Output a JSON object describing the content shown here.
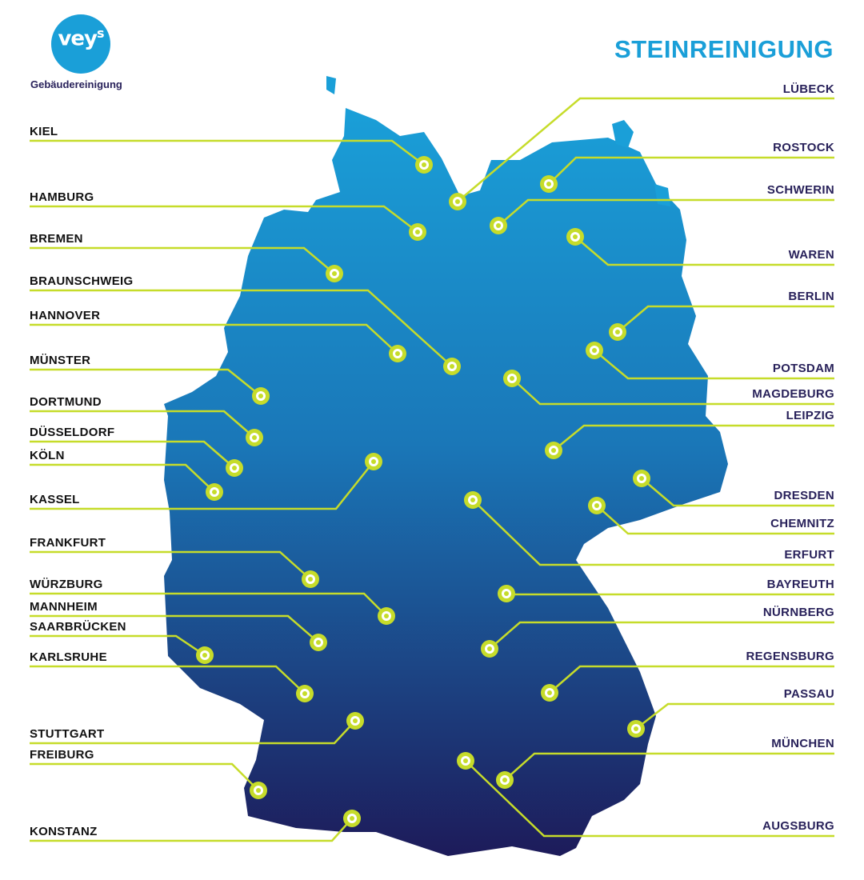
{
  "logo": {
    "mark": "vey",
    "mark_sup": "s",
    "subtitle": "Gebäudereinigung"
  },
  "title": "STEINREINIGUNG",
  "colors": {
    "accent": "#c6dc2a",
    "title": "#1a9fd8",
    "map_top": "#1a9fd8",
    "map_bottom": "#1d1b5a",
    "label_dark": "#28215a"
  },
  "cities_left": [
    "KIEL",
    "HAMBURG",
    "BREMEN",
    "BRAUNSCHWEIG",
    "HANNOVER",
    "MÜNSTER",
    "DORTMUND",
    "DÜSSELDORF",
    "KÖLN",
    "KASSEL",
    "FRANKFURT",
    "WÜRZBURG",
    "MANNHEIM",
    "SAARBRÜCKEN",
    "KARLSRUHE",
    "STUTTGART",
    "FREIBURG",
    "KONSTANZ"
  ],
  "cities_right": [
    "LÜBECK",
    "ROSTOCK",
    "SCHWERIN",
    "WAREN",
    "BERLIN",
    "POTSDAM",
    "MAGDEBURG",
    "LEIPZIG",
    "DRESDEN",
    "CHEMNITZ",
    "ERFURT",
    "BAYREUTH",
    "NÜRNBERG",
    "REGENSBURG",
    "PASSAU",
    "MÜNCHEN",
    "AUGSBURG"
  ]
}
